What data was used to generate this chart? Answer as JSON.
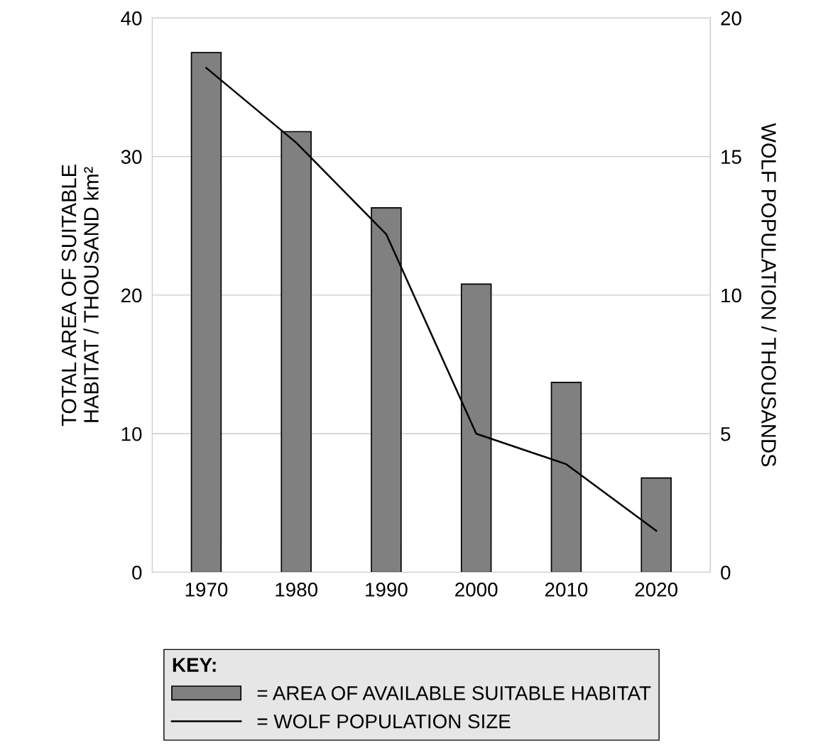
{
  "chart_data": {
    "type": "bar",
    "categories": [
      "1970",
      "1980",
      "1990",
      "2000",
      "2010",
      "2020"
    ],
    "series": [
      {
        "name": "= AREA OF AVAILABLE SUITABLE HABITAT",
        "color": "#808080",
        "values": [
          37.5,
          31.8,
          26.3,
          20.8,
          13.7,
          6.8
        ]
      },
      {
        "name": "= WOLF POPULATION SIZE",
        "type": "line",
        "axis": "y2",
        "color": "#000000",
        "values": [
          18.2,
          15.5,
          12.2,
          5.0,
          3.9,
          1.5
        ]
      }
    ],
    "ylabel": "TOTAL AREA OF SUITABLE\nHABITAT / THOUSAND km²",
    "y2label": "WOLF POPULATION / THOUSANDS",
    "ylim": [
      0,
      40
    ],
    "yticks": [
      0,
      10,
      20,
      30,
      40
    ],
    "y2lim": [
      0,
      20
    ],
    "y2ticks": [
      0,
      5,
      10,
      15,
      20
    ],
    "grid": "y",
    "legend": "bottom",
    "legend_title": "KEY:",
    "marker": "none",
    "line_style": "solid"
  }
}
